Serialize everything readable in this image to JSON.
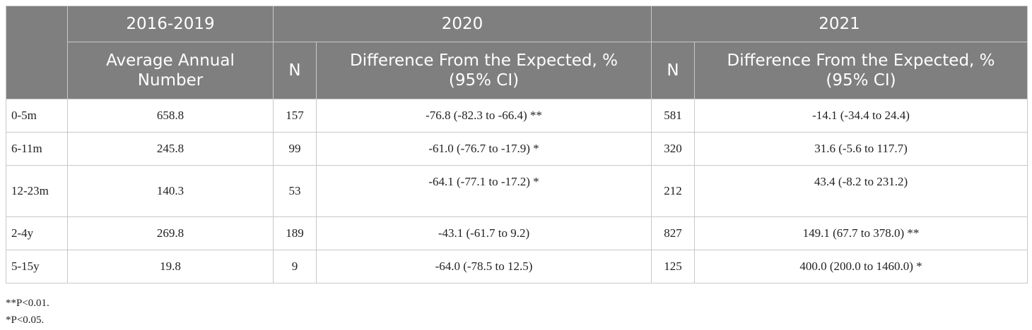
{
  "header": {
    "period_1": "2016-2019",
    "period_2": "2020",
    "period_3": "2021",
    "avg_annual_number": "Average Annual Number",
    "n_label": "N",
    "difference_label": "Difference From the Expected, %",
    "ci_label": "(95% CI)"
  },
  "rows": [
    {
      "age": "0-5m",
      "avg": "658.8",
      "n_2020": "157",
      "diff_2020": "-76.8 (-82.3 to -66.4) **",
      "n_2021": "581",
      "diff_2021": "-14.1 (-34.4 to 24.4)"
    },
    {
      "age": "6-11m",
      "avg": "245.8",
      "n_2020": "99",
      "diff_2020": "-61.0 (-76.7 to -17.9) *",
      "n_2021": "320",
      "diff_2021": "31.6 (-5.6 to 117.7)"
    },
    {
      "age": "12-23m",
      "avg": "140.3",
      "n_2020": "53",
      "diff_2020": "-64.1 (-77.1 to -17.2) *",
      "n_2021": "212",
      "diff_2021": "43.4 (-8.2 to 231.2)"
    },
    {
      "age": "2-4y",
      "avg": "269.8",
      "n_2020": "189",
      "diff_2020": "-43.1 (-61.7 to 9.2)",
      "n_2021": "827",
      "diff_2021": "149.1 (67.7 to 378.0) **"
    },
    {
      "age": "5-15y",
      "avg": "19.8",
      "n_2020": "9",
      "diff_2020": "-64.0 (-78.5 to 12.5)",
      "n_2021": "125",
      "diff_2021": "400.0 (200.0 to 1460.0) *"
    }
  ],
  "footnotes": [
    "**P<0.01.",
    "*P<0.05."
  ]
}
